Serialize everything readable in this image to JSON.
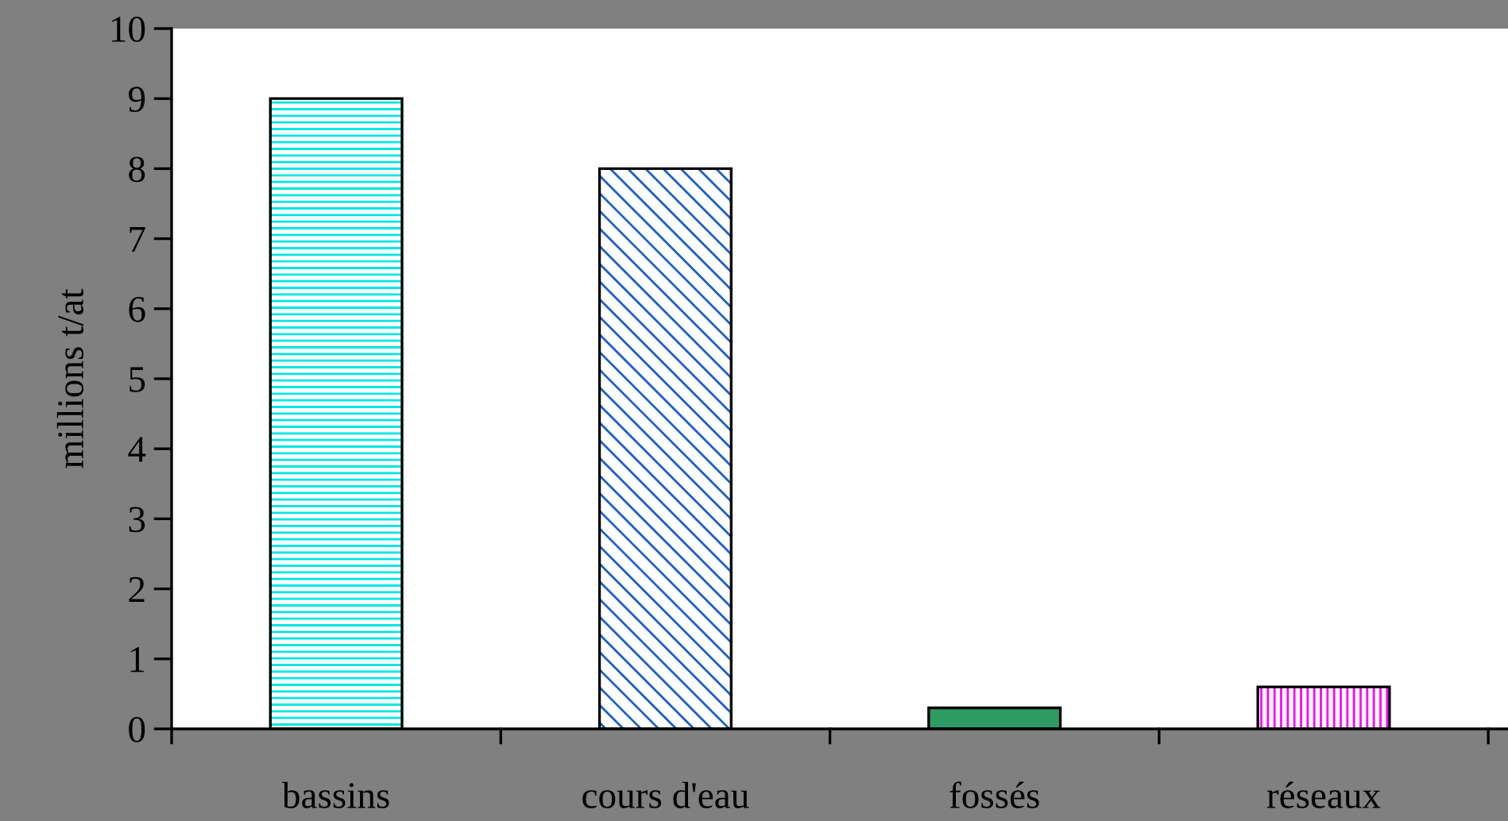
{
  "chart_data": {
    "type": "bar",
    "ylabel": "millions t/at",
    "categories": [
      "bassins",
      "cours d'eau",
      "fossés",
      "réseaux"
    ],
    "values": [
      9,
      8,
      0.3,
      0.6
    ],
    "colors": [
      "#00e5e5",
      "#1a5fc8",
      "#2e9a64",
      "#ff00ff"
    ],
    "ylim": [
      0,
      10
    ],
    "yticks": [
      0,
      1,
      2,
      3,
      4,
      5,
      6,
      7,
      8,
      9,
      10
    ],
    "grid": false,
    "legend": false
  }
}
